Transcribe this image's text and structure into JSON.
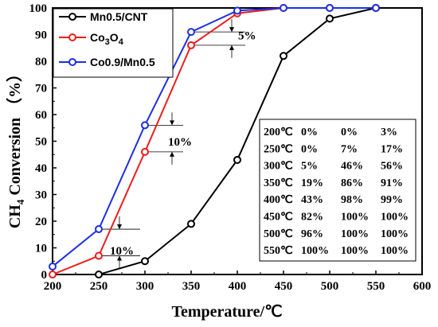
{
  "chart_data": {
    "type": "line",
    "title": "",
    "xlabel": "Temperature/℃",
    "ylabel_main": "CH",
    "ylabel_sub": "4",
    "ylabel_rest": " Conversion （%）",
    "xlim": [
      200,
      600
    ],
    "ylim": [
      0,
      100
    ],
    "x_ticks": [
      200,
      250,
      300,
      350,
      400,
      450,
      500,
      550,
      600
    ],
    "y_ticks": [
      0,
      10,
      20,
      30,
      40,
      50,
      60,
      70,
      80,
      90,
      100
    ],
    "grid": false,
    "legend_position": "top-left",
    "series": [
      {
        "name": "Mn0.5/CNT",
        "legend_label": "Mn0.5/CNT",
        "color": "#000000",
        "x": [
          250,
          300,
          350,
          400,
          450,
          500,
          550
        ],
        "y": [
          0,
          5,
          19,
          43,
          82,
          96,
          100
        ]
      },
      {
        "name": "Co3O4",
        "legend_label": "Co",
        "legend_sub1": "3",
        "legend_mid": "O",
        "legend_sub2": "4",
        "color": "#ee1c1c",
        "x": [
          200,
          250,
          300,
          350,
          400,
          450,
          500,
          550
        ],
        "y": [
          0,
          7,
          46,
          86,
          98,
          100,
          100,
          100
        ]
      },
      {
        "name": "Co0.9/Mn0.5",
        "legend_label": "Co0.9/Mn0.5",
        "color": "#1c2ee6",
        "x": [
          200,
          250,
          300,
          350,
          400,
          450,
          500,
          550
        ],
        "y": [
          3,
          17,
          56,
          91,
          99,
          100,
          100,
          100
        ]
      }
    ],
    "annotations": [
      {
        "text": "5%"
      },
      {
        "text": "10%"
      },
      {
        "text": "10%"
      }
    ],
    "table": {
      "rows": [
        [
          "200℃",
          "0%",
          "0%",
          "3%"
        ],
        [
          "250℃",
          "0%",
          "7%",
          "17%"
        ],
        [
          "300℃",
          "5%",
          "46%",
          "56%"
        ],
        [
          "350℃",
          "19%",
          "86%",
          "91%"
        ],
        [
          "400℃",
          "43%",
          "98%",
          "99%"
        ],
        [
          "450℃",
          "82%",
          "100%",
          "100%"
        ],
        [
          "500℃",
          "96%",
          "100%",
          "100%"
        ],
        [
          "550℃",
          "100%",
          "100%",
          "100%"
        ]
      ]
    }
  }
}
